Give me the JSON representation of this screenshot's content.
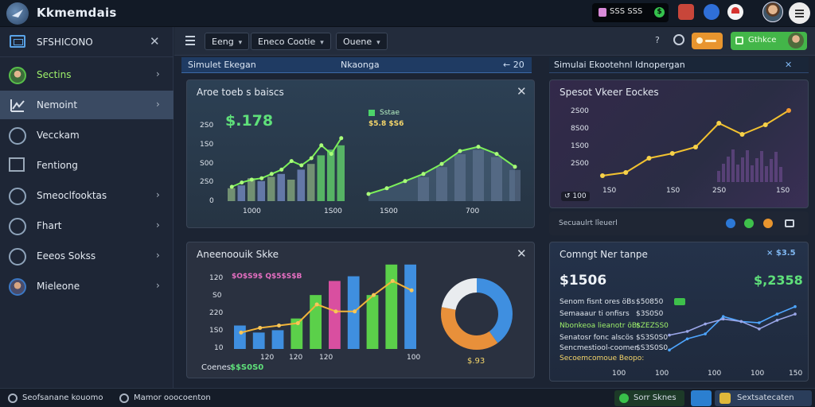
{
  "app": {
    "title": "Kkmemdais",
    "top_pill": "SSS SSS",
    "top_pill_badge": "$"
  },
  "sidebar": {
    "header": "SFSHICONO",
    "items": [
      {
        "label": "Sectins",
        "icon": "avatar-icon"
      },
      {
        "label": "Nemoint",
        "icon": "chart-line-icon"
      },
      {
        "label": "Vecckam",
        "icon": "compass-icon"
      },
      {
        "label": "Fentiong",
        "icon": "square-icon"
      },
      {
        "label": "Smeoclfooktas",
        "icon": "cloud-icon"
      },
      {
        "label": "Fhart",
        "icon": "globe-icon"
      },
      {
        "label": "Eeeos Sokss",
        "icon": "brain-icon"
      },
      {
        "label": "Mieleone",
        "icon": "avatar-icon"
      }
    ]
  },
  "toolbar": {
    "btn1": "Eeng",
    "btn2": "Eneco",
    "btn2b": "Cootie",
    "btn3": "Ouene",
    "dropdown_glyph": "▾",
    "help": "?",
    "green_btn": "Gthkce"
  },
  "strips": {
    "left_title": "Simulet Ekegan",
    "left_mid": "Nkaonga",
    "left_right": "← 20",
    "right_title": "Simulai Ekootehnl Idnopergan",
    "right_close": "✕"
  },
  "panel_tl": {
    "title": "Aroe toeb s baiscs",
    "big_value": "$.178",
    "legend_label": "Sstae",
    "legend_value": "$5.8 $S6",
    "y_ticks": [
      "2S0",
      "1S0",
      "S00",
      "2S0",
      "0"
    ],
    "x_ticks": [
      "1000",
      "1S00",
      "1S00",
      "700"
    ]
  },
  "panel_tr": {
    "title": "Spesot Vkeer Eockes",
    "y_ticks": [
      "2S00",
      "8S00",
      "1S00",
      "2S00"
    ],
    "x_ticks": [
      "1S0",
      "1S0",
      "2S0",
      "1S0"
    ],
    "badge": "↺ 100",
    "sub_text": "Secuaulrt lîeuerl"
  },
  "panel_bl": {
    "title": "Aneenoouik Skke",
    "legend": "$O$S9$ Q$5$S$B",
    "y_ticks": [
      "120",
      "S0",
      "220",
      "1S0",
      "10"
    ],
    "x_ticks": [
      "120",
      "120",
      "120",
      "100"
    ],
    "footer_label": "Coenes",
    "footer_value": "$$S0S0",
    "donut_value": "$.93"
  },
  "panel_br": {
    "title": "Comngt Ner tanpe",
    "right_badge": "× $3.5",
    "big_value": "$1506",
    "big_green": "$,2358",
    "rows": [
      {
        "label": "Senom fisnt ores öBs",
        "value": "$50850"
      },
      {
        "label": "Semaaaur ti onfisrs",
        "value": "$3S0S0"
      },
      {
        "label": "Nbonkeoa lieanotr öBs",
        "value": "$ZEZSS0"
      },
      {
        "label": "Senatosr fonc alscös",
        "value": "$S3S0S0"
      },
      {
        "label": "Sencmestiool-coomer",
        "value": "$S3S0S0"
      },
      {
        "label": "Secoemcomoue Beopo:",
        "value": ""
      }
    ],
    "x_ticks": [
      "100",
      "100",
      "100",
      "100",
      "150"
    ]
  },
  "status": {
    "left": "Seofsanane kouomo",
    "mid": "Mamor ooocoenton",
    "green": "Sorr Sknes",
    "right": "Sextsatecaten"
  },
  "chart_data": [
    {
      "type": "bar",
      "title": "Aroe toeb s baiscs",
      "categories": [
        "1",
        "2",
        "3",
        "4",
        "5",
        "6",
        "7",
        "8",
        "9",
        "10",
        "11",
        "12"
      ],
      "series": [
        {
          "name": "bars",
          "values": [
            0.9,
            1.1,
            1.6,
            1.4,
            1.7,
            1.9,
            1.5,
            2.2,
            2.6,
            3.2,
            3.6,
            3.9
          ]
        },
        {
          "name": "line",
          "values": [
            1.0,
            1.3,
            1.5,
            1.6,
            1.9,
            2.2,
            2.8,
            2.5,
            3.0,
            3.9,
            3.3,
            4.4
          ]
        }
      ],
      "ylim": [
        0,
        5
      ]
    },
    {
      "type": "area",
      "title": "",
      "x": [
        1,
        2,
        3,
        4,
        5,
        6,
        7,
        8,
        9
      ],
      "series": [
        {
          "name": "",
          "values": [
            0.5,
            0.9,
            1.4,
            1.9,
            2.6,
            3.5,
            3.8,
            3.3,
            2.4
          ]
        }
      ],
      "ylim": [
        0,
        5
      ]
    },
    {
      "type": "line",
      "title": "Spesot Vkeer Eockes",
      "x": [
        1,
        2,
        3,
        4,
        5,
        6,
        7,
        8,
        9
      ],
      "series": [
        {
          "name": "",
          "values": [
            0.4,
            0.6,
            1.5,
            1.8,
            2.2,
            3.7,
            3.0,
            3.6,
            4.5
          ]
        }
      ],
      "ylim": [
        0,
        5
      ]
    },
    {
      "type": "bar",
      "title": "Aneenoouik Skke",
      "categories": [
        "1",
        "2",
        "3",
        "4",
        "5",
        "6",
        "7",
        "8",
        "9",
        "10"
      ],
      "series": [
        {
          "name": "bars",
          "values": [
            1.0,
            0.7,
            0.8,
            1.3,
            2.3,
            2.9,
            3.1,
            2.3,
            3.6,
            3.6
          ]
        },
        {
          "name": "line",
          "values": [
            0.7,
            0.9,
            1.0,
            1.1,
            1.9,
            1.6,
            1.6,
            2.3,
            2.9,
            2.5
          ]
        }
      ],
      "ylim": [
        0,
        4
      ]
    },
    {
      "type": "pie",
      "title": "",
      "categories": [
        "blue",
        "orange",
        "white"
      ],
      "values": [
        40,
        38,
        22
      ]
    },
    {
      "type": "line",
      "title": "Comngt Ner tanpe",
      "x": [
        1,
        2,
        3,
        4,
        5,
        6,
        7,
        8
      ],
      "series": [
        {
          "name": "",
          "values": [
            0.3,
            1.2,
            1.6,
            3.0,
            2.6,
            2.5,
            3.2,
            3.8
          ]
        },
        {
          "name": "",
          "values": [
            1.5,
            1.8,
            2.4,
            2.8,
            2.6,
            2.0,
            2.7,
            3.2
          ]
        }
      ],
      "ylim": [
        0,
        5
      ]
    }
  ],
  "colors": {
    "accent_green": "#5fe07a",
    "accent_orange": "#e8952e",
    "accent_blue": "#3f8fe0",
    "line_yellow": "#f2c230"
  }
}
